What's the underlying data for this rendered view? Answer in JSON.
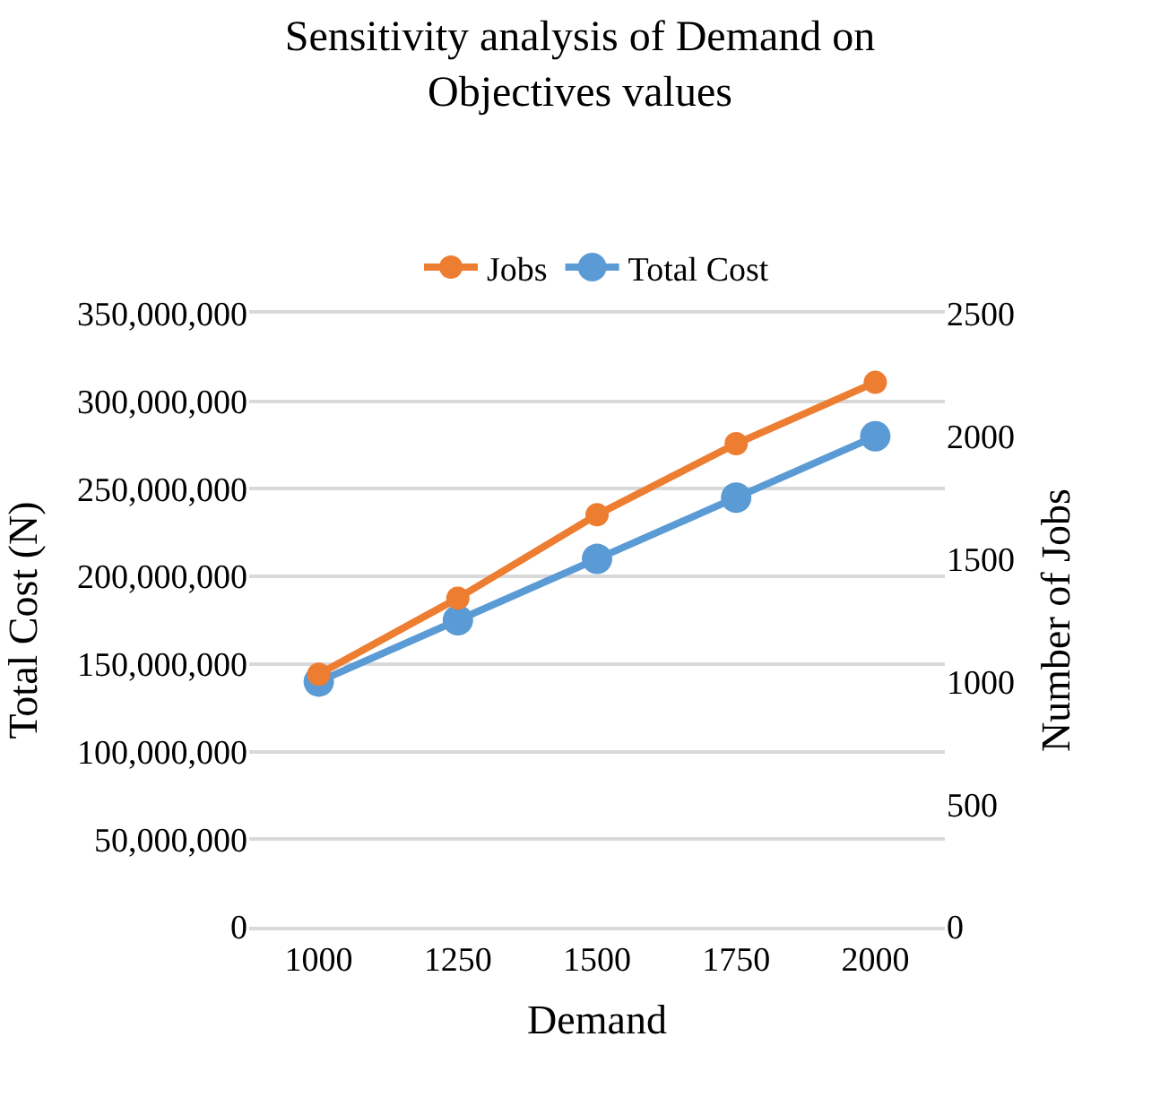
{
  "chart_data": {
    "type": "line",
    "title": "Sensitivity analysis of Demand on\nObjectives values",
    "xlabel": "Demand",
    "ylabel": "Total Cost (N)",
    "y2label": "Number of Jobs",
    "categories": [
      "1000",
      "1250",
      "1500",
      "1750",
      "2000"
    ],
    "series": [
      {
        "name": "Jobs",
        "color": "#ed7d31",
        "values": [
          1030,
          1340,
          1680,
          1970,
          2220
        ],
        "axis": "y2"
      },
      {
        "name": "Total Cost",
        "color": "#5b9bd5",
        "values": [
          140000000,
          175000000,
          210000000,
          245000000,
          280000000
        ]
      }
    ],
    "ylim": [
      0,
      350000000
    ],
    "yticks": [
      {
        "value": 0,
        "label": "0"
      },
      {
        "value": 50000000,
        "label": "50,000,000"
      },
      {
        "value": 100000000,
        "label": "100,000,000"
      },
      {
        "value": 150000000,
        "label": "150,000,000"
      },
      {
        "value": 200000000,
        "label": "200,000,000"
      },
      {
        "value": 250000000,
        "label": "250,000,000"
      },
      {
        "value": 300000000,
        "label": "300,000,000"
      },
      {
        "value": 350000000,
        "label": "350,000,000"
      }
    ],
    "y2lim": [
      0,
      2500
    ],
    "y2ticks": [
      0,
      500,
      1000,
      1500,
      2000,
      2500
    ],
    "grid": "y",
    "legend": "top",
    "marker": "circle",
    "line_style": "solid"
  }
}
